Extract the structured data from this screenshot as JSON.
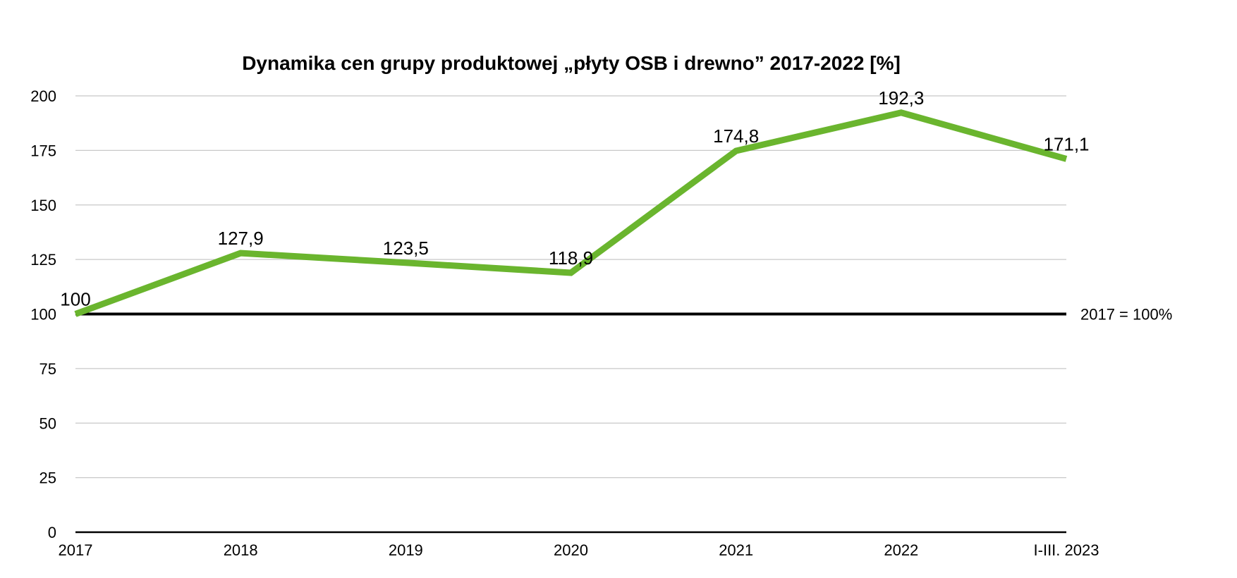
{
  "chart_data": {
    "type": "line",
    "title": "Dynamika cen grupy produktowej „płyty OSB i drewno” 2017-2022 [%]",
    "xlabel": "",
    "ylabel": "",
    "categories": [
      "2017",
      "2018",
      "2019",
      "2020",
      "2021",
      "2022",
      "I-III. 2023"
    ],
    "series": [
      {
        "values": [
          100,
          127.9,
          123.5,
          118.9,
          174.8,
          192.3,
          171.1
        ],
        "labels": [
          "100",
          "127,9",
          "123,5",
          "118,9",
          "174,8",
          "192,3",
          "171,1"
        ]
      }
    ],
    "ylim": [
      0,
      200
    ],
    "yticks": [
      0,
      25,
      50,
      75,
      100,
      125,
      150,
      175,
      200
    ],
    "grid": true,
    "legend": "none",
    "reference_line": {
      "value": 100,
      "label": "2017 = 100%"
    },
    "colors": {
      "series": "#6ab52e",
      "grid": "#c8c8c8",
      "axis": "#000000",
      "reference": "#000000"
    }
  }
}
